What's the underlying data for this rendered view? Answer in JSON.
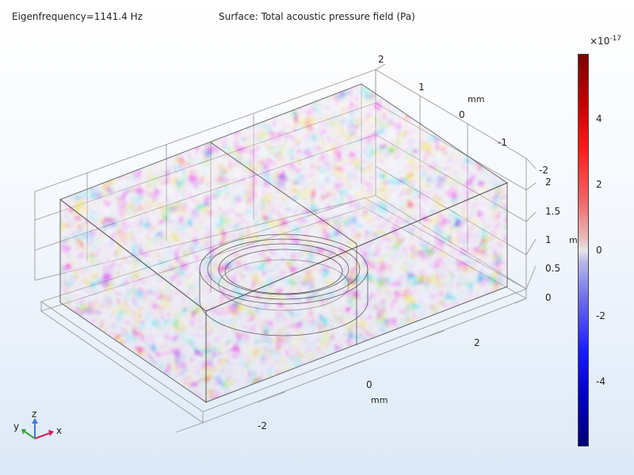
{
  "header": {
    "eigenfrequency": "Eigenfrequency=1141.4 Hz",
    "surface_label": "Surface: Total acoustic pressure field (Pa)"
  },
  "colorbar": {
    "multiplier_base": "×10",
    "multiplier_exp": "-17",
    "ticks": [
      "4",
      "2",
      "0",
      "-2",
      "-4"
    ]
  },
  "axes": {
    "x": {
      "ticks": [
        "2",
        "0",
        "-2"
      ],
      "unit": "mm"
    },
    "y": {
      "ticks": [
        "2",
        "1",
        "0",
        "-1",
        "-2"
      ],
      "unit": "mm"
    },
    "z": {
      "ticks": [
        "2",
        "1.5",
        "1",
        "0.5",
        "0"
      ],
      "unit": "m"
    }
  },
  "triad": {
    "x": "x",
    "y": "y",
    "z": "z"
  },
  "colors": {
    "positive": "#e0222a",
    "negative": "#2a2ae6",
    "neutral": "#dedede"
  }
}
